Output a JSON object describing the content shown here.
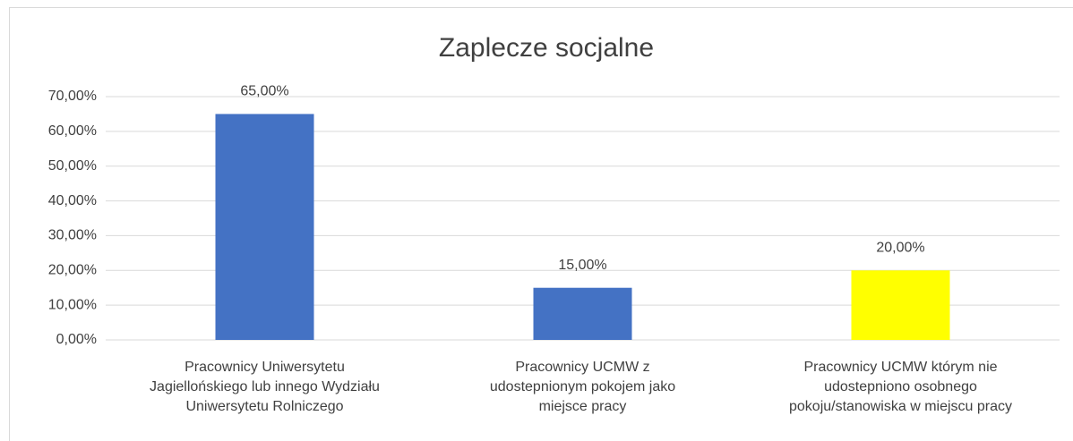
{
  "chart_data": {
    "type": "bar",
    "title": "Zaplecze socjalne",
    "categories": [
      "Pracownicy Uniwersytetu\nJagiellońskiego lub innego Wydziału\nUniwersytetu Rolniczego",
      "Pracownicy UCMW z\nudostepnionym pokojem jako\nmiejsce pracy",
      "Pracownicy UCMW którym nie\nudostepniono osobnego\npokoju/stanowiska w miejscu pracy"
    ],
    "values": [
      65,
      15,
      20
    ],
    "value_labels": [
      "65,00%",
      "15,00%",
      "20,00%"
    ],
    "colors": [
      "#4472c4",
      "#4472c4",
      "#ffff00"
    ],
    "ylim": [
      0,
      70
    ],
    "yticks": [
      {
        "value": 0,
        "label": "0,00%"
      },
      {
        "value": 10,
        "label": "10,00%"
      },
      {
        "value": 20,
        "label": "20,00%"
      },
      {
        "value": 30,
        "label": "30,00%"
      },
      {
        "value": 40,
        "label": "40,00%"
      },
      {
        "value": 50,
        "label": "50,00%"
      },
      {
        "value": 60,
        "label": "60,00%"
      },
      {
        "value": 70,
        "label": "70,00%"
      }
    ],
    "grid": true
  }
}
